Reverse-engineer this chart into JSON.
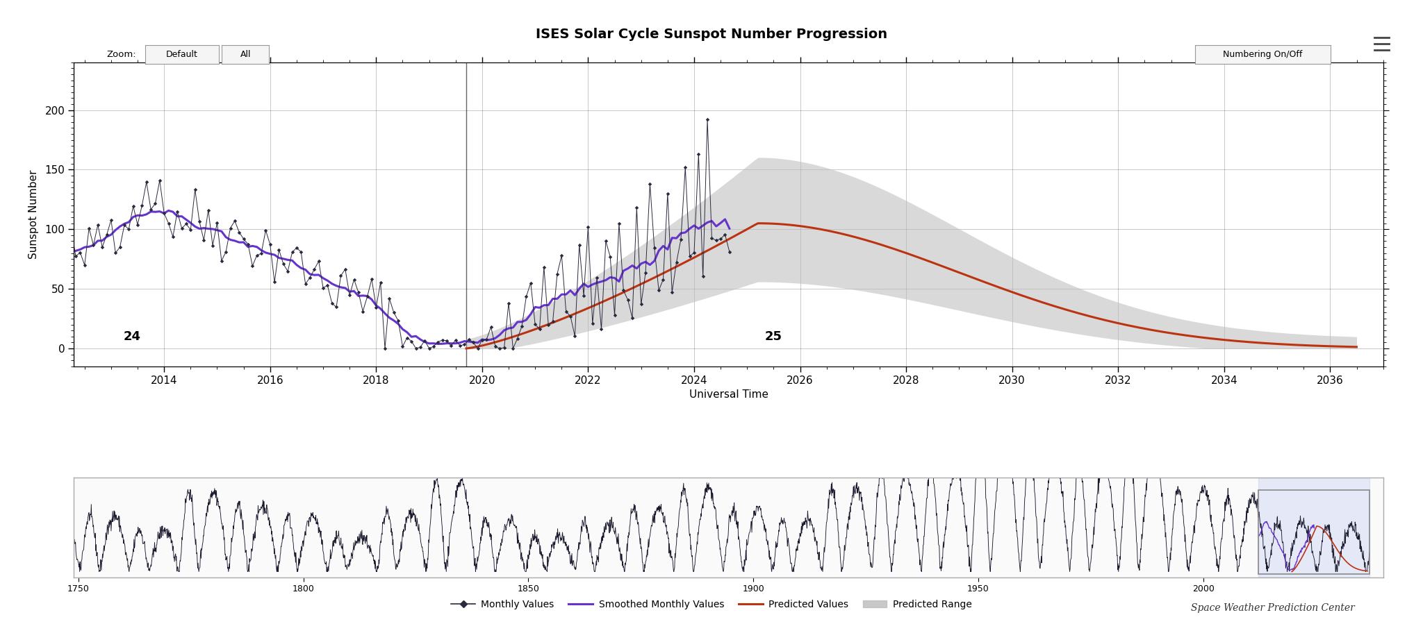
{
  "title": "ISES Solar Cycle Sunspot Number Progression",
  "xlabel": "Universal Time",
  "ylabel": "Sunspot Number",
  "background_color": "#ffffff",
  "plot_bg_color": "#ffffff",
  "cycle24_label": "24",
  "cycle25_label": "25",
  "cycle24_x": 2013.4,
  "cycle25_x": 2025.5,
  "ylim": [
    -15,
    240
  ],
  "xlim": [
    2012.3,
    2037.0
  ],
  "xticks": [
    2014,
    2016,
    2018,
    2020,
    2022,
    2024,
    2026,
    2028,
    2030,
    2032,
    2034,
    2036
  ],
  "yticks": [
    0,
    50,
    100,
    150,
    200
  ],
  "grid_color": "#000000",
  "grid_alpha": 0.25,
  "monthly_color": "#2a2a3e",
  "smoothed_color": "#6633cc",
  "predicted_color": "#bb3311",
  "predicted_range_color": "#bbbbbb",
  "predicted_range_alpha": 0.55,
  "bottom_panel_years": [
    1750,
    1800,
    1850,
    1900,
    1950,
    2000
  ],
  "legend_items": [
    "Monthly Values",
    "Smoothed Monthly Values",
    "Predicted Values",
    "Predicted Range"
  ],
  "zoom_label": "Zoom:",
  "btn1": "Default",
  "btn2": "All",
  "btn3": "Numbering On/Off",
  "footer": "Space Weather Prediction Center"
}
